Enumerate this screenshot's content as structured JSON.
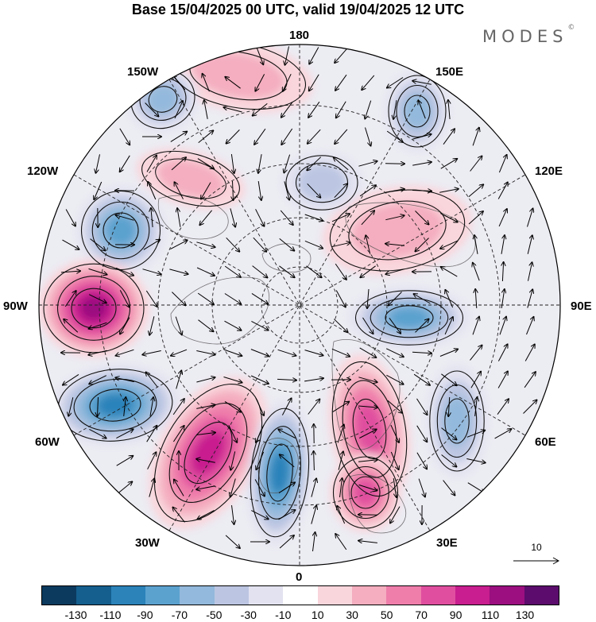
{
  "title": "Base 15/04/2025 00 UTC, valid 19/04/2025 12 UTC",
  "brand": {
    "name": "MODES",
    "mark": "©"
  },
  "longitude_labels": {
    "top": "180",
    "bottom": "0",
    "left": "90W",
    "right": "90E",
    "lon_150W": "150W",
    "lon_150E": "150E",
    "lon_120W": "120W",
    "lon_120E": "120E",
    "lon_60W": "60W",
    "lon_60E": "60E",
    "lon_30W": "30W",
    "lon_30E": "30E"
  },
  "vector_reference": {
    "label": "10"
  },
  "colorbar": {
    "colors": [
      "#0b3a5e",
      "#145f8e",
      "#2b83ba",
      "#5ba2cf",
      "#93b9dc",
      "#bcc6e2",
      "#e2e2f0",
      "#ffffff",
      "#f9d6dc",
      "#f4aebf",
      "#ef7eab",
      "#e04f9f",
      "#c81e8f",
      "#9b0f80",
      "#5b0c6c"
    ],
    "tick_labels": [
      "-130",
      "-110",
      "-90",
      "-70",
      "-50",
      "-30",
      "-10",
      "10",
      "30",
      "50",
      "70",
      "90",
      "110",
      "130"
    ]
  },
  "anomaly_centers": [
    {
      "id": "n-pacific-west",
      "value": 40
    },
    {
      "id": "n-pacific-east",
      "value": -60
    },
    {
      "id": "aleutian",
      "value": -50
    },
    {
      "id": "west-canada",
      "value": 30
    },
    {
      "id": "alaska-low",
      "value": -80
    },
    {
      "id": "hudson-high",
      "value": 120
    },
    {
      "id": "labrador-low",
      "value": -100
    },
    {
      "id": "atlantic-high",
      "value": 90
    },
    {
      "id": "europe-low",
      "value": -100
    },
    {
      "id": "scandinavia-high",
      "value": 70
    },
    {
      "id": "mideast-high",
      "value": 80
    },
    {
      "id": "siberia-low",
      "value": -70
    },
    {
      "id": "central-asia-low",
      "value": -50
    },
    {
      "id": "east-siberia-high",
      "value": 40
    },
    {
      "id": "arctic-low",
      "value": -40
    }
  ]
}
